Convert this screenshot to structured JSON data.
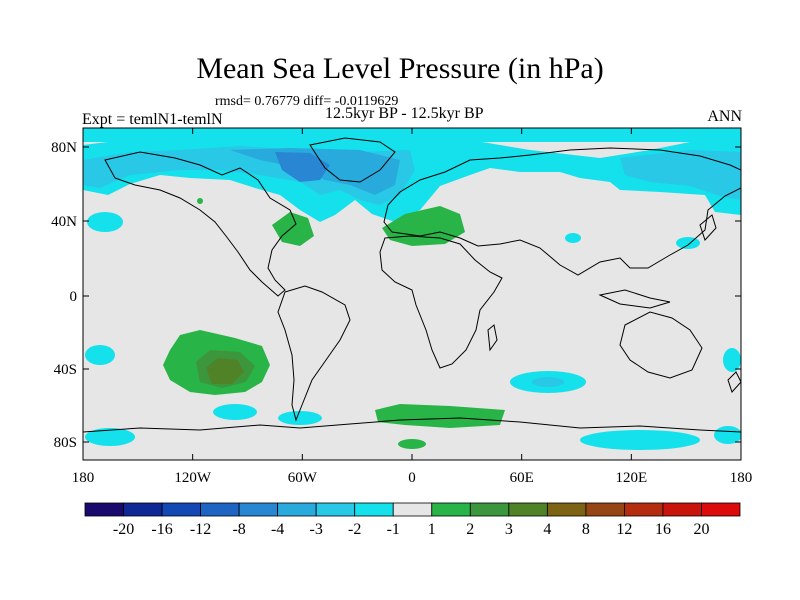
{
  "title": "Mean Sea Level Pressure (in hPa)",
  "stats": "rmsd= 0.76779  diff= -0.0119629",
  "experiment": "Expt = temlN1-temlN",
  "period": "12.5kyr BP - 12.5kyr BP",
  "season": "ANN",
  "map": {
    "lon_ticks": [
      "180",
      "120W",
      "60W",
      "0",
      "60E",
      "120E",
      "180"
    ],
    "lat_ticks": [
      "80N",
      "40N",
      "0",
      "40S",
      "80S"
    ]
  },
  "colorbar": {
    "labels": [
      "-20",
      "-16",
      "-12",
      "-8",
      "-4",
      "-3",
      "-2",
      "-1",
      "1",
      "2",
      "3",
      "4",
      "8",
      "12",
      "16",
      "20"
    ],
    "colors": [
      "#1a0a6e",
      "#102896",
      "#1448b4",
      "#1e64c3",
      "#2886d2",
      "#28aadc",
      "#28c8e6",
      "#14e1eb",
      "#e6e6e6",
      "#28b446",
      "#3c963c",
      "#508228",
      "#7d6414",
      "#964614",
      "#b42d0f",
      "#c8140a",
      "#dc0a0a"
    ]
  },
  "colors": {
    "background": "#e6e6e6",
    "land_outline": "#000000"
  }
}
